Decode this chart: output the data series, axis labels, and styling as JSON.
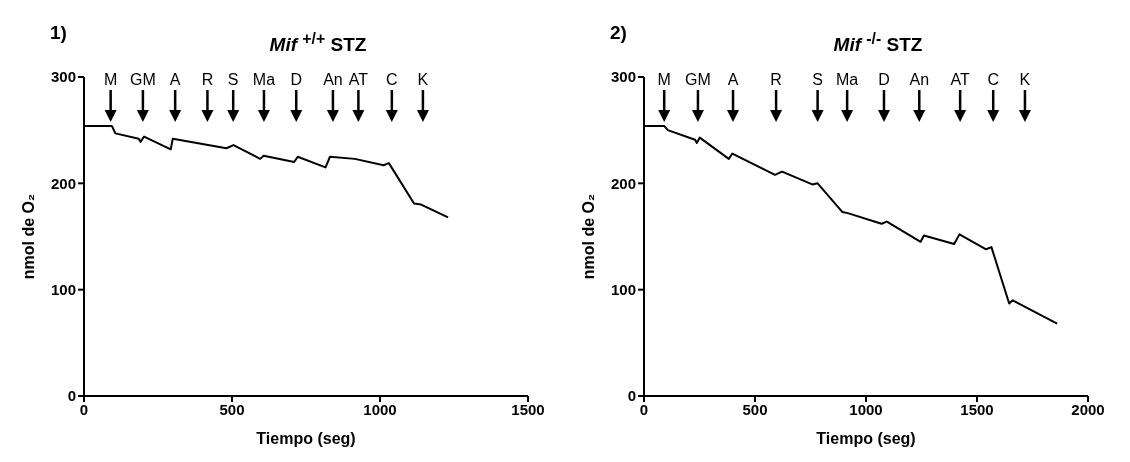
{
  "chart_data": [
    {
      "type": "line",
      "title": "Mif $^{+/+}$ STZ",
      "xlabel": "Tiempo (seg)",
      "ylabel": "nmol de O₂",
      "color": "#000000",
      "grid": false,
      "legend": false,
      "x": [
        0,
        94,
        106,
        185,
        191,
        203,
        293,
        300,
        481,
        505,
        595,
        607,
        710,
        722,
        816,
        831,
        915,
        1012,
        1030,
        1115,
        1139,
        1230
      ],
      "values": [
        254,
        254,
        247,
        242,
        239,
        244,
        232,
        242,
        233,
        236,
        223,
        226,
        220,
        225,
        215,
        225,
        223,
        217,
        219,
        181,
        180,
        168
      ],
      "xlim": [
        0,
        1500
      ],
      "xticks": [
        0,
        500,
        1000,
        1500
      ],
      "ylim": [
        0,
        300
      ],
      "yticks": [
        0,
        100,
        200,
        300
      ],
      "annotations": [
        "1)"
      ],
      "ref_lines": [
        {
          "axis": "x",
          "value": 90,
          "label": "M"
        },
        {
          "axis": "x",
          "value": 199,
          "label": "GM"
        },
        {
          "axis": "x",
          "value": 308,
          "label": "A"
        },
        {
          "axis": "x",
          "value": 417,
          "label": "R"
        },
        {
          "axis": "x",
          "value": 504,
          "label": "S"
        },
        {
          "axis": "x",
          "value": 608,
          "label": "Ma"
        },
        {
          "axis": "x",
          "value": 717,
          "label": "D"
        },
        {
          "axis": "x",
          "value": 841,
          "label": "An"
        },
        {
          "axis": "x",
          "value": 927,
          "label": "AT"
        },
        {
          "axis": "x",
          "value": 1040,
          "label": "C"
        },
        {
          "axis": "x",
          "value": 1145,
          "label": "K"
        }
      ]
    },
    {
      "type": "line",
      "title": "Mif $^{-/-}$ STZ",
      "xlabel": "Tiempo (seg)",
      "ylabel": "nmol de O₂",
      "color": "#000000",
      "grid": false,
      "legend": false,
      "x": [
        0,
        91,
        107,
        230,
        238,
        251,
        382,
        398,
        590,
        622,
        758,
        782,
        894,
        918,
        1070,
        1094,
        1246,
        1261,
        1397,
        1421,
        1541,
        1565,
        1645,
        1661,
        1861
      ],
      "values": [
        254,
        254,
        250,
        241,
        238,
        243,
        223,
        228,
        208,
        211,
        199,
        200,
        173,
        172,
        162,
        164,
        145,
        151,
        143,
        152,
        138,
        140,
        87,
        90,
        68
      ],
      "xlim": [
        0,
        2000
      ],
      "xticks": [
        0,
        500,
        1000,
        1500,
        2000
      ],
      "ylim": [
        0,
        300
      ],
      "yticks": [
        0,
        100,
        200,
        300
      ],
      "annotations": [
        "2)"
      ],
      "ref_lines": [
        {
          "axis": "x",
          "value": 91,
          "label": "M"
        },
        {
          "axis": "x",
          "value": 243,
          "label": "GM"
        },
        {
          "axis": "x",
          "value": 401,
          "label": "A"
        },
        {
          "axis": "x",
          "value": 595,
          "label": "R"
        },
        {
          "axis": "x",
          "value": 782,
          "label": "S"
        },
        {
          "axis": "x",
          "value": 915,
          "label": "Ma"
        },
        {
          "axis": "x",
          "value": 1081,
          "label": "D"
        },
        {
          "axis": "x",
          "value": 1240,
          "label": "An"
        },
        {
          "axis": "x",
          "value": 1424,
          "label": "AT"
        },
        {
          "axis": "x",
          "value": 1573,
          "label": "C"
        },
        {
          "axis": "x",
          "value": 1716,
          "label": "K"
        }
      ]
    }
  ]
}
